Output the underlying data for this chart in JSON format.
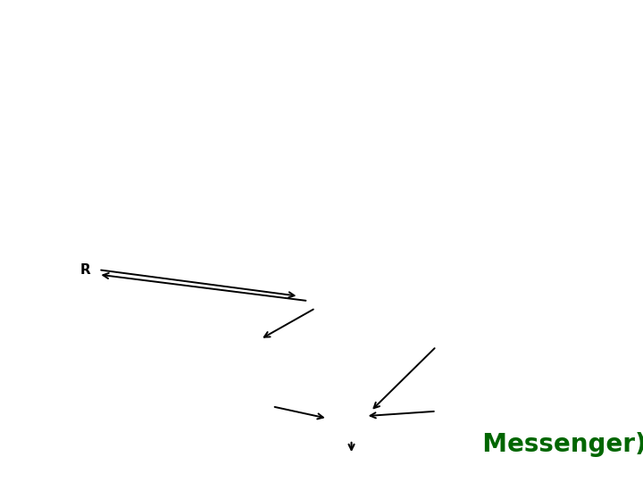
{
  "bg_color": "#ffffff",
  "title_color": "#006600",
  "gprotein_fill": "#008B8B",
  "gprotein_edge": "#005555",
  "receptor_fill": "#c8c8c8",
  "receptor_hatch": "///",
  "receptor_edge": "#666666"
}
